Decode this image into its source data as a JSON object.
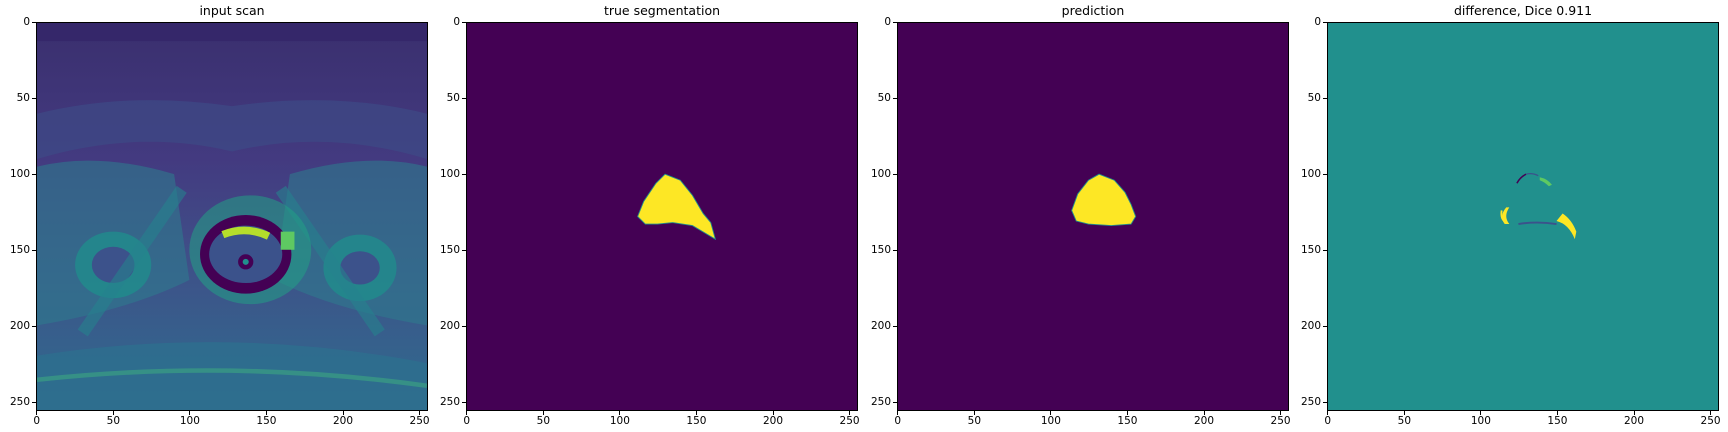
{
  "colors": {
    "viridis_dark": "#440154",
    "viridis_mid": "#21908d",
    "viridis_bright": "#fde725",
    "viridis_blue": "#3b528b",
    "viridis_green": "#5ec962"
  },
  "chart_data": [
    {
      "type": "heatmap",
      "title": "input scan",
      "xlabel": "",
      "ylabel": "",
      "xlim": [
        0,
        255
      ],
      "ylim": [
        255,
        0
      ],
      "xticks": [
        "0",
        "50",
        "100",
        "150",
        "200",
        "250"
      ],
      "yticks": [
        "0",
        "50",
        "100",
        "150",
        "200",
        "250"
      ],
      "colormap": "viridis",
      "grid": false
    },
    {
      "type": "heatmap",
      "title": "true segmentation",
      "xlabel": "",
      "ylabel": "",
      "xlim": [
        0,
        255
      ],
      "ylim": [
        255,
        0
      ],
      "xticks": [
        "0",
        "50",
        "100",
        "150",
        "200",
        "250"
      ],
      "yticks": [
        "0",
        "50",
        "100",
        "150",
        "200",
        "250"
      ],
      "colormap": "viridis",
      "mask_outline": [
        [
          130,
          100
        ],
        [
          140,
          104
        ],
        [
          148,
          114
        ],
        [
          155,
          126
        ],
        [
          160,
          132
        ],
        [
          163,
          143
        ],
        [
          158,
          140
        ],
        [
          148,
          134
        ],
        [
          135,
          132
        ],
        [
          125,
          133
        ],
        [
          117,
          133
        ],
        [
          112,
          128
        ],
        [
          116,
          118
        ],
        [
          124,
          106
        ]
      ],
      "grid": false
    },
    {
      "type": "heatmap",
      "title": "prediction",
      "xlabel": "",
      "ylabel": "",
      "xlim": [
        0,
        255
      ],
      "ylim": [
        255,
        0
      ],
      "xticks": [
        "0",
        "50",
        "100",
        "150",
        "200",
        "250"
      ],
      "yticks": [
        "0",
        "50",
        "100",
        "150",
        "200",
        "250"
      ],
      "colormap": "viridis",
      "mask_outline": [
        [
          132,
          100
        ],
        [
          142,
          104
        ],
        [
          149,
          112
        ],
        [
          153,
          120
        ],
        [
          156,
          128
        ],
        [
          153,
          133
        ],
        [
          140,
          134
        ],
        [
          125,
          133
        ],
        [
          117,
          131
        ],
        [
          114,
          124
        ],
        [
          118,
          113
        ],
        [
          125,
          104
        ]
      ],
      "grid": false
    },
    {
      "type": "heatmap",
      "title": "difference, Dice 0.911",
      "xlabel": "",
      "ylabel": "",
      "xlim": [
        0,
        255
      ],
      "ylim": [
        255,
        0
      ],
      "xticks": [
        "0",
        "50",
        "100",
        "150",
        "200",
        "250"
      ],
      "yticks": [
        "0",
        "50",
        "100",
        "150",
        "200",
        "250"
      ],
      "colormap": "viridis",
      "dice": 0.911,
      "grid": false
    }
  ]
}
